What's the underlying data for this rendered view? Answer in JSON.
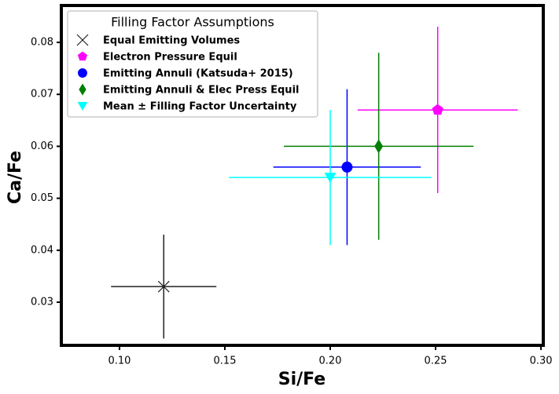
{
  "chart_data": {
    "type": "scatter",
    "x_label": "Si/Fe",
    "y_label": "Ca/Fe",
    "legend_title": "Filling Factor Assumptions",
    "legend_position": "upper left",
    "xlim": [
      0.0724,
      0.3011
    ],
    "ylim": [
      0.0217,
      0.0871
    ],
    "xticks": [
      0.1,
      0.15,
      0.2,
      0.25,
      0.3
    ],
    "yticks": [
      0.03,
      0.04,
      0.05,
      0.06,
      0.07,
      0.08
    ],
    "xtick_labels": [
      "0.10",
      "0.15",
      "0.20",
      "0.25",
      "0.30"
    ],
    "ytick_labels": [
      "0.03",
      "0.04",
      "0.05",
      "0.06",
      "0.07",
      "0.08"
    ],
    "series": [
      {
        "name": "Equal Emitting Volumes",
        "color": "#222222",
        "marker": "x",
        "x": [
          0.121
        ],
        "y": [
          0.033
        ],
        "xerr": [
          0.025
        ],
        "yerr": [
          0.01
        ]
      },
      {
        "name": "Electron Pressure Equil",
        "color": "#ff00ff",
        "marker": "pentagon",
        "x": [
          0.251
        ],
        "y": [
          0.067
        ],
        "xerr": [
          0.038
        ],
        "yerr": [
          0.016
        ]
      },
      {
        "name": "Emitting Annuli (Katsuda+ 2015)",
        "color": "#0000ff",
        "marker": "circle",
        "x": [
          0.208
        ],
        "y": [
          0.056
        ],
        "xerr": [
          0.035
        ],
        "yerr": [
          0.015
        ]
      },
      {
        "name": "Emitting Annuli & Elec Press Equil",
        "color": "#008000",
        "marker": "diamond",
        "x": [
          0.223
        ],
        "y": [
          0.06
        ],
        "xerr": [
          0.045
        ],
        "yerr": [
          0.018
        ]
      },
      {
        "name": "Mean ± Filling Factor Uncertainty",
        "color": "#00ffff",
        "marker": "triangle-down",
        "x": [
          0.2
        ],
        "y": [
          0.054
        ],
        "xerr": [
          0.048
        ],
        "yerr": [
          0.013
        ]
      }
    ]
  }
}
